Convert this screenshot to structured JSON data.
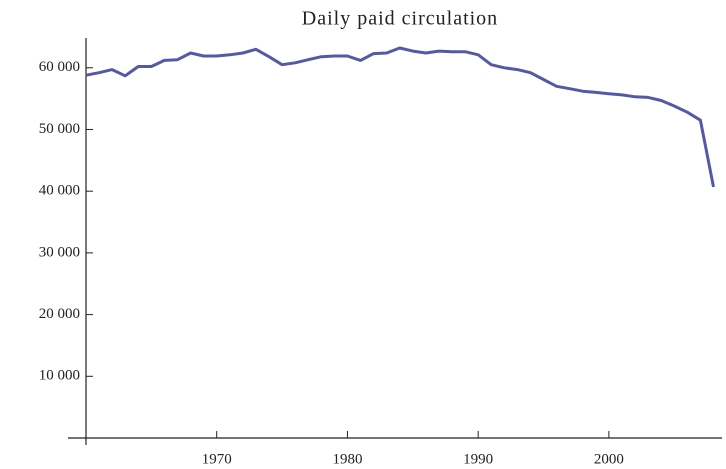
{
  "chart_data": {
    "type": "line",
    "title": "Daily paid circulation",
    "x": [
      1960,
      1961,
      1962,
      1963,
      1964,
      1965,
      1966,
      1967,
      1968,
      1969,
      1970,
      1971,
      1972,
      1973,
      1974,
      1975,
      1976,
      1977,
      1978,
      1979,
      1980,
      1981,
      1982,
      1983,
      1984,
      1985,
      1986,
      1987,
      1988,
      1989,
      1990,
      1991,
      1992,
      1993,
      1994,
      1995,
      1996,
      1997,
      1998,
      1999,
      2000,
      2001,
      2002,
      2003,
      2004,
      2005,
      2006,
      2007,
      2008
    ],
    "series": [
      {
        "name": "Daily paid circulation",
        "color": "#5558a8",
        "values": [
          58800,
          59200,
          59700,
          58700,
          60200,
          60200,
          61200,
          61300,
          62400,
          61900,
          61900,
          62100,
          62400,
          63000,
          61800,
          60500,
          60800,
          61300,
          61800,
          61900,
          61900,
          61200,
          62300,
          62400,
          63200,
          62700,
          62400,
          62700,
          62600,
          62600,
          62100,
          60500,
          60000,
          59700,
          59200,
          58100,
          57000,
          56600,
          56200,
          56000,
          55800,
          55600,
          55300,
          55200,
          54700,
          53800,
          52800,
          51500,
          40700
        ]
      }
    ],
    "xlim": [
      1960,
      2008.5
    ],
    "xticks": [
      1970,
      1980,
      1990,
      2000
    ],
    "ylim": [
      0,
      64500
    ],
    "yticks": [
      {
        "value": 10000,
        "label": "10 000"
      },
      {
        "value": 20000,
        "label": "20 000"
      },
      {
        "value": 30000,
        "label": "30 000"
      },
      {
        "value": 40000,
        "label": "40 000"
      },
      {
        "value": 50000,
        "label": "50 000"
      },
      {
        "value": 60000,
        "label": "60 000"
      }
    ]
  }
}
